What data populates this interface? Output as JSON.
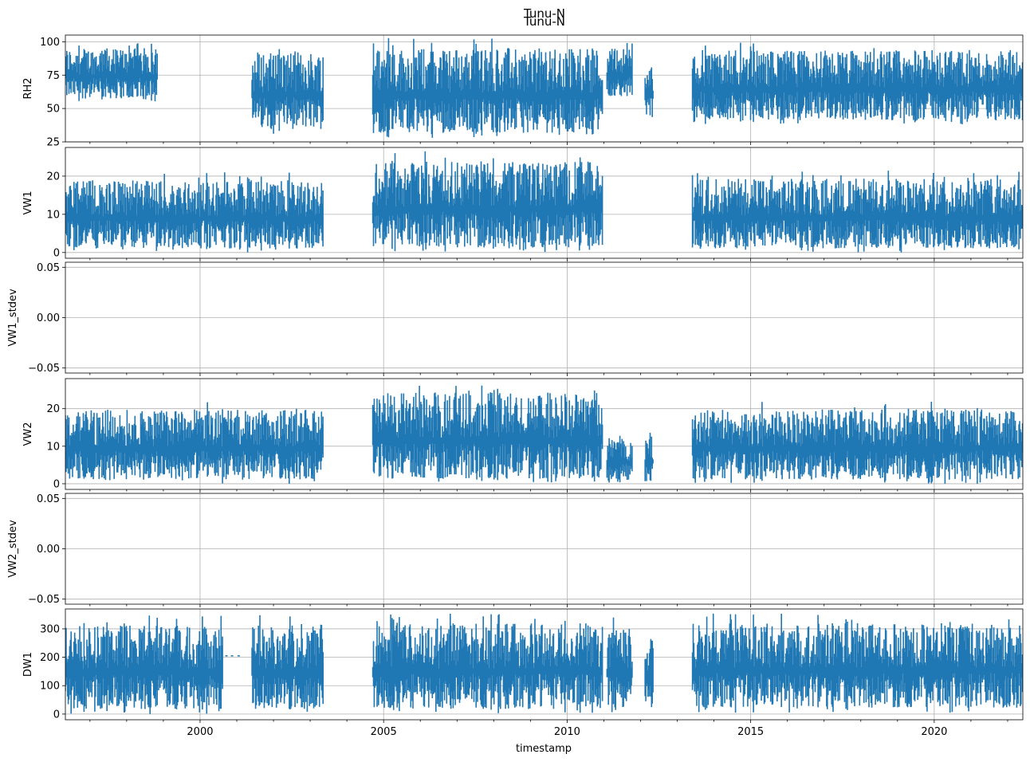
{
  "titles": [
    "Tunu-N",
    "Tunu-N"
  ],
  "chart_data": {
    "type": "line",
    "xlabel": "timestamp",
    "xlim": [
      "1996-05-01",
      "2022-06-01"
    ],
    "x_ticks": [
      "2000",
      "2005",
      "2010",
      "2015",
      "2020"
    ],
    "grid": true,
    "legend": "none",
    "series_color": "#1f77b4",
    "panels": [
      {
        "name": "RH2",
        "ylabel": "RH2",
        "ylim": [
          25,
          105
        ],
        "yticks": [
          25,
          50,
          75,
          100
        ],
        "ytick_labels": [
          "25",
          "50",
          "75",
          "100"
        ],
        "segments": [
          {
            "start": "1996-05-01",
            "end": "1998-11-01",
            "low": 55,
            "high": 100
          },
          {
            "start": "2001-06-01",
            "end": "2003-05-15",
            "low": 31,
            "high": 100
          },
          {
            "start": "2004-09-15",
            "end": "2010-12-20",
            "low": 28,
            "high": 103
          },
          {
            "start": "2011-02-01",
            "end": "2011-10-15",
            "low": 57,
            "high": 100
          },
          {
            "start": "2012-02-15",
            "end": "2012-05-10",
            "low": 41,
            "high": 87
          },
          {
            "start": "2013-06-01",
            "end": "2022-06-01",
            "low": 38,
            "high": 100
          }
        ]
      },
      {
        "name": "VW1",
        "ylabel": "VW1",
        "ylim": [
          -1.5,
          27.5
        ],
        "yticks": [
          0,
          10,
          20
        ],
        "ytick_labels": [
          "0",
          "10",
          "20"
        ],
        "segments": [
          {
            "start": "1996-05-01",
            "end": "2003-05-15",
            "low": 0,
            "high": 21
          },
          {
            "start": "2004-09-15",
            "end": "2010-12-20",
            "low": 0,
            "high": 26.5
          }
        ],
        "segments_late": [
          {
            "start": "2013-06-01",
            "end": "2022-06-01",
            "low": 0,
            "high": 21.5
          }
        ]
      },
      {
        "name": "VW1_stdev",
        "ylabel": "VW1_stdev",
        "ylim": [
          -0.055,
          0.055
        ],
        "yticks": [
          -0.05,
          0,
          0.05
        ],
        "ytick_labels": [
          "−0.05",
          "0.00",
          "0.05"
        ],
        "segments": []
      },
      {
        "name": "VW2",
        "ylabel": "VW2",
        "ylim": [
          -1.5,
          28
        ],
        "yticks": [
          0,
          10,
          20
        ],
        "ytick_labels": [
          "0",
          "10",
          "20"
        ],
        "segments": [
          {
            "start": "1996-05-01",
            "end": "2003-05-15",
            "low": 0,
            "high": 22
          },
          {
            "start": "2004-09-15",
            "end": "2010-12-20",
            "low": 0,
            "high": 27
          },
          {
            "start": "2011-02-01",
            "end": "2011-10-15",
            "low": 0,
            "high": 13.5
          },
          {
            "start": "2012-02-15",
            "end": "2012-05-10",
            "low": 0,
            "high": 14
          },
          {
            "start": "2013-06-01",
            "end": "2022-06-01",
            "low": 0,
            "high": 22
          }
        ]
      },
      {
        "name": "VW2_stdev",
        "ylabel": "VW2_stdev",
        "ylim": [
          -0.055,
          0.055
        ],
        "yticks": [
          -0.05,
          0,
          0.05
        ],
        "ytick_labels": [
          "−0.05",
          "0.00",
          "0.05"
        ],
        "segments": []
      },
      {
        "name": "DW1",
        "ylabel": "DW1",
        "ylim": [
          -20,
          370
        ],
        "yticks": [
          0,
          100,
          200,
          300
        ],
        "ytick_labels": [
          "0",
          "100",
          "200",
          "300"
        ],
        "segments": [
          {
            "start": "1996-05-01",
            "end": "2000-08-15",
            "low": 0,
            "high": 350
          },
          {
            "start": "2001-06-01",
            "end": "2003-05-15",
            "low": 0,
            "high": 350
          },
          {
            "start": "2004-09-15",
            "end": "2010-12-20",
            "low": 0,
            "high": 355
          },
          {
            "start": "2011-02-01",
            "end": "2011-10-15",
            "low": 5,
            "high": 340
          },
          {
            "start": "2012-02-15",
            "end": "2012-05-10",
            "low": 0,
            "high": 300
          },
          {
            "start": "2013-06-01",
            "end": "2022-06-01",
            "low": 5,
            "high": 355
          }
        ],
        "scatter_points": [
          {
            "x": "2000-09-20",
            "y": 205
          },
          {
            "x": "2000-11-15",
            "y": 205
          },
          {
            "x": "2001-01-20",
            "y": 205
          }
        ]
      }
    ]
  }
}
